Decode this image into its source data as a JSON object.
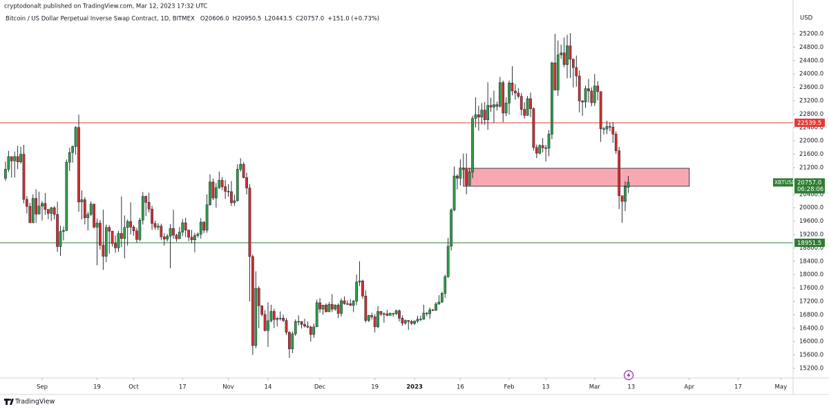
{
  "chart_data": {
    "type": "candlestick",
    "publisher": "cryptodonalt published on TradingView.com, Mar 12, 2023 17:32 UTC",
    "title": "Bitcoin / US Dollar Perpetual Inverse Swap Contract, 1D, BITMEX",
    "legend_values": [
      "O20606.0",
      "H20950.5",
      "L20443.5",
      "C20757.0",
      "+151.0 (+0.73%)"
    ],
    "y_axis_label": "USD",
    "footer": "TradingView",
    "up_color": "#2e9e48",
    "down_color": "#d32f2f",
    "x": [
      0,
      1,
      2,
      3,
      4,
      5,
      6,
      7,
      8,
      9,
      10,
      11,
      12,
      13,
      14,
      15,
      16,
      17,
      18,
      19,
      20,
      21,
      22,
      23,
      24,
      25,
      26,
      27,
      28,
      29,
      30,
      31,
      32,
      33,
      34,
      35,
      36,
      37,
      38,
      39,
      40,
      41,
      42,
      43,
      44,
      45,
      46,
      47,
      48,
      49,
      50,
      51,
      52,
      53,
      54,
      55,
      56,
      57,
      58,
      59,
      60,
      61,
      62,
      63,
      64,
      65,
      66,
      67,
      68,
      69,
      70,
      71,
      72,
      73,
      74,
      75,
      76,
      77,
      78,
      79,
      80,
      81,
      82,
      83,
      84,
      85,
      86,
      87,
      88,
      89,
      90,
      91,
      92,
      93,
      94,
      95,
      96,
      97,
      98,
      99,
      100,
      101,
      102,
      103,
      104,
      105,
      106,
      107,
      108,
      109,
      110,
      111,
      112,
      113,
      114,
      115,
      116,
      117,
      118,
      119,
      120,
      121,
      122,
      123,
      124,
      125,
      126,
      127,
      128,
      129,
      130,
      131,
      132,
      133,
      134,
      135,
      136,
      137,
      138,
      139,
      140,
      141,
      142,
      143,
      144,
      145,
      146,
      147,
      148,
      149,
      150,
      151,
      152,
      153,
      154,
      155,
      156,
      157,
      158,
      159,
      160,
      161,
      162,
      163,
      164,
      165,
      166,
      167,
      168,
      169,
      170,
      171,
      172,
      173,
      174,
      175,
      176,
      177,
      178,
      179,
      180,
      181,
      182,
      183,
      184,
      185,
      186,
      187,
      188,
      189,
      190,
      191,
      192,
      193,
      194,
      195,
      196,
      197,
      198,
      199,
      200,
      201,
      202,
      203,
      204
    ],
    "open": [
      20880,
      21150,
      21530,
      21400,
      21530,
      21370,
      21600,
      20250,
      20040,
      19550,
      20280,
      19810,
      20050,
      20130,
      19950,
      19830,
      20000,
      19800,
      18840,
      19290,
      19320,
      21360,
      21650,
      21830,
      22400,
      20170,
      20240,
      19700,
      19800,
      20110,
      19420,
      19540,
      18880,
      18550,
      19410,
      19300,
      18930,
      18800,
      19230,
      19080,
      19410,
      19590,
      19420,
      19310,
      19050,
      19630,
      20340,
      20160,
      19960,
      19530,
      19420,
      19450,
      19130,
      19060,
      19150,
      19380,
      19180,
      19070,
      19270,
      19550,
      19330,
      19120,
      19040,
      19170,
      19210,
      19570,
      19330,
      20090,
      20770,
      20290,
      20600,
      20820,
      20630,
      20490,
      20480,
      20150,
      20210,
      21150,
      21300,
      20900,
      20590,
      18540,
      15880,
      17590,
      17070,
      16810,
      16330,
      16620,
      16900,
      16660,
      16690,
      16700,
      16630,
      16280,
      15780,
      16230,
      16600,
      16600,
      16510,
      16460,
      16430,
      16210,
      16440,
      17160,
      16970,
      17090,
      16890,
      17110,
      16970,
      17090,
      16840,
      17220,
      17130,
      17130,
      17080,
      17210,
      17780,
      17810,
      17360,
      16630,
      16780,
      16740,
      16440,
      16900,
      16820,
      16830,
      16780,
      16840,
      16830,
      16920,
      16700,
      16550,
      16630,
      16600,
      16540,
      16610,
      16670,
      16670,
      16850,
      16830,
      16950,
      16940,
      17120,
      17180,
      17440,
      17940,
      18850,
      19930,
      20950,
      20880,
      21190,
      21140,
      20680,
      21070,
      22670,
      22780,
      22710,
      22920,
      22630,
      23060,
      23010,
      23080,
      23030,
      23740,
      22830,
      23130,
      23730,
      23490,
      23430,
      23330,
      22940,
      22760,
      23260,
      22960,
      21800,
      21630,
      21860,
      21790,
      21780,
      22200,
      24330,
      23520,
      24570,
      24630,
      24280,
      24840,
      24440,
      24190,
      23940,
      23190,
      23160,
      23560,
      23490,
      23140,
      23640,
      23470,
      22360,
      22350,
      22430,
      22410,
      22200,
      21700,
      20360,
      20190,
      20606
    ],
    "high": [
      21380,
      21700,
      21530,
      21680,
      21850,
      21820,
      21880,
      20350,
      20150,
      20400,
      20550,
      20480,
      20200,
      20440,
      19960,
      20030,
      20050,
      20180,
      19460,
      19440,
      21440,
      21790,
      21860,
      22440,
      22780,
      20520,
      20320,
      19880,
      20190,
      20110,
      19680,
      19630,
      19940,
      19500,
      19480,
      19310,
      19170,
      19310,
      20340,
      19770,
      19650,
      20160,
      19480,
      19400,
      19700,
      20470,
      20360,
      20450,
      20060,
      19610,
      19540,
      19520,
      19240,
      19220,
      19510,
      19940,
      19220,
      19420,
      19660,
      19700,
      19350,
      19340,
      19250,
      19260,
      19690,
      19600,
      20400,
      21000,
      20870,
      20740,
      21080,
      20920,
      20830,
      20700,
      20800,
      20390,
      21300,
      21480,
      21360,
      21050,
      20700,
      18600,
      18100,
      17650,
      17070,
      16940,
      17170,
      17100,
      16980,
      16740,
      16900,
      16800,
      16700,
      16300,
      16300,
      16660,
      16780,
      16600,
      16680,
      16600,
      16480,
      16540,
      17250,
      17300,
      17100,
      17140,
      17180,
      17420,
      17110,
      17140,
      17290,
      17350,
      17230,
      17270,
      17240,
      18000,
      18400,
      17850,
      17530,
      16800,
      16860,
      16820,
      17060,
      16910,
      16870,
      16950,
      16870,
      16860,
      16950,
      16960,
      16780,
      16660,
      16640,
      16650,
      16630,
      16770,
      16770,
      17100,
      16880,
      17020,
      16970,
      17180,
      17390,
      17490,
      18000,
      19100,
      19990,
      21230,
      21000,
      21450,
      21620,
      21620,
      21180,
      22750,
      23300,
      23050,
      23130,
      23160,
      23750,
      23290,
      23500,
      23170,
      23910,
      23800,
      23300,
      23800,
      24230,
      23700,
      23570,
      23430,
      23150,
      23340,
      23440,
      23000,
      21890,
      21900,
      22080,
      21880,
      22320,
      24370,
      25200,
      25000,
      24880,
      25090,
      25170,
      25220,
      24460,
      24550,
      24100,
      23220,
      23650,
      23850,
      23600,
      24000,
      23780,
      23480,
      22420,
      22600,
      22550,
      22560,
      22280,
      21820,
      20360,
      20790,
      20950.5
    ],
    "low": [
      20800,
      21070,
      20900,
      20900,
      21160,
      21320,
      20130,
      19830,
      19550,
      19550,
      19550,
      19800,
      19620,
      19790,
      19660,
      19600,
      19650,
      18680,
      18560,
      19020,
      19300,
      21100,
      21350,
      21580,
      19880,
      19650,
      19500,
      19320,
      19750,
      19380,
      18280,
      18750,
      18140,
      18380,
      18630,
      18840,
      18650,
      18680,
      18820,
      18490,
      18870,
      19200,
      19160,
      18960,
      19000,
      19500,
      19750,
      19860,
      19340,
      19350,
      19330,
      19030,
      18870,
      18990,
      18190,
      19070,
      18980,
      19070,
      19150,
      19120,
      19000,
      18940,
      18670,
      19110,
      19080,
      19240,
      19250,
      20060,
      20230,
      20000,
      20560,
      20530,
      20260,
      20330,
      20050,
      20060,
      20180,
      21080,
      20880,
      20400,
      17200,
      15600,
      15800,
      16400,
      16750,
      16300,
      15840,
      16570,
      16400,
      16450,
      16630,
      16580,
      16200,
      15510,
      15650,
      16170,
      16480,
      16390,
      16420,
      16400,
      16000,
      16110,
      16430,
      16860,
      16800,
      16870,
      16880,
      16880,
      16920,
      16700,
      16750,
      17100,
      17090,
      17070,
      16880,
      17090,
      17660,
      17280,
      16570,
      16580,
      16660,
      16270,
      16400,
      16760,
      16560,
      16760,
      16780,
      16740,
      16790,
      16600,
      16470,
      16500,
      16350,
      16490,
      16490,
      16560,
      16610,
      16650,
      16760,
      16680,
      16910,
      16910,
      17100,
      17150,
      17310,
      17900,
      18720,
      19900,
      20550,
      20660,
      20870,
      20400,
      20660,
      20880,
      22400,
      22300,
      22490,
      22480,
      22330,
      22860,
      22540,
      22900,
      23000,
      22560,
      22740,
      22780,
      23360,
      23230,
      23270,
      22760,
      22660,
      22750,
      22710,
      21710,
      21480,
      21600,
      21650,
      21380,
      21540,
      22050,
      23500,
      23340,
      24450,
      24200,
      23870,
      23880,
      23600,
      23620,
      22850,
      22750,
      22980,
      23150,
      23030,
      23040,
      23210,
      21970,
      22190,
      22200,
      22290,
      21940,
      21610,
      19960,
      19550,
      19900,
      20443.5
    ],
    "close": [
      21150,
      21530,
      21400,
      21530,
      21370,
      21600,
      20250,
      20040,
      19550,
      20280,
      19810,
      20050,
      20130,
      19950,
      19830,
      20000,
      19800,
      18840,
      19290,
      19320,
      21360,
      21650,
      21830,
      22400,
      20170,
      20240,
      19700,
      19800,
      20110,
      19420,
      19540,
      18880,
      18550,
      19410,
      19300,
      18930,
      18800,
      19230,
      19080,
      19410,
      19590,
      19420,
      19310,
      19050,
      19630,
      20340,
      20160,
      19960,
      19530,
      19420,
      19450,
      19130,
      19060,
      19150,
      19380,
      19180,
      19070,
      19270,
      19550,
      19330,
      19120,
      19040,
      19170,
      19210,
      19570,
      19330,
      20090,
      20770,
      20290,
      20600,
      20820,
      20630,
      20490,
      20480,
      20150,
      20210,
      21150,
      21300,
      20900,
      20590,
      18540,
      15880,
      17590,
      17070,
      16810,
      16330,
      16620,
      16900,
      16660,
      16690,
      16700,
      16630,
      16280,
      15780,
      16230,
      16600,
      16600,
      16510,
      16460,
      16430,
      16210,
      16440,
      17160,
      16970,
      17090,
      16890,
      17110,
      16970,
      17090,
      16840,
      17220,
      17130,
      17130,
      17080,
      17210,
      17780,
      17810,
      17360,
      16630,
      16780,
      16740,
      16440,
      16900,
      16820,
      16830,
      16780,
      16840,
      16830,
      16920,
      16700,
      16550,
      16630,
      16600,
      16540,
      16610,
      16670,
      16670,
      16850,
      16830,
      16950,
      16940,
      17120,
      17180,
      17440,
      17940,
      18850,
      19930,
      20950,
      20880,
      21190,
      21140,
      20680,
      21070,
      22670,
      22780,
      22710,
      22920,
      22630,
      23060,
      23010,
      23080,
      23030,
      23740,
      22830,
      23130,
      23730,
      23490,
      23430,
      23330,
      22940,
      22760,
      23260,
      22960,
      21800,
      21630,
      21860,
      21790,
      21780,
      22200,
      24330,
      23520,
      24570,
      24630,
      24280,
      24840,
      24440,
      24190,
      23940,
      23190,
      23160,
      23560,
      23490,
      23140,
      23640,
      23470,
      22360,
      22350,
      22430,
      22410,
      22200,
      21700,
      20360,
      20190,
      20630,
      20757
    ],
    "xlim": [
      -1.8,
      258
    ],
    "xticks": [
      {
        "value": 12,
        "label": "Sep"
      },
      {
        "value": 30,
        "label": "19"
      },
      {
        "value": 42,
        "label": "Oct"
      },
      {
        "value": 58,
        "label": "17"
      },
      {
        "value": 73,
        "label": "Nov"
      },
      {
        "value": 86,
        "label": "14"
      },
      {
        "value": 103,
        "label": "Dec"
      },
      {
        "value": 121,
        "label": "19"
      },
      {
        "value": 134,
        "label": "2023"
      },
      {
        "value": 149,
        "label": "16"
      },
      {
        "value": 165,
        "label": "Feb"
      },
      {
        "value": 177,
        "label": "13"
      },
      {
        "value": 193,
        "label": "Mar"
      },
      {
        "value": 205,
        "label": "13"
      },
      {
        "value": 224,
        "label": "Apr"
      },
      {
        "value": 240,
        "label": "17"
      },
      {
        "value": 254,
        "label": "May"
      }
    ],
    "ylim": [
      14911,
      26210
    ],
    "yticks": [
      {
        "value": 15200,
        "label": "15200.0"
      },
      {
        "value": 15600,
        "label": "15600.0"
      },
      {
        "value": 16000,
        "label": "16000.0"
      },
      {
        "value": 16400,
        "label": "16400.0"
      },
      {
        "value": 16800,
        "label": "16800.0"
      },
      {
        "value": 17200,
        "label": "17200.0"
      },
      {
        "value": 17600,
        "label": "17600.0"
      },
      {
        "value": 18000,
        "label": "18000.0"
      },
      {
        "value": 18400,
        "label": "18400.0"
      },
      {
        "value": 18800,
        "label": "18800.0"
      },
      {
        "value": 19200,
        "label": "19200.0"
      },
      {
        "value": 19600,
        "label": "19600.0"
      },
      {
        "value": 20000,
        "label": "20000.0"
      },
      {
        "value": 20400,
        "label": "20400.0"
      },
      {
        "value": 20800,
        "label": "20800.0"
      },
      {
        "value": 21200,
        "label": "21200.0"
      },
      {
        "value": 21600,
        "label": "21600.0"
      },
      {
        "value": 22000,
        "label": "22000.0"
      },
      {
        "value": 22400,
        "label": "22400.0"
      },
      {
        "value": 22800,
        "label": "22800.0"
      },
      {
        "value": 23200,
        "label": "23200.0"
      },
      {
        "value": 23600,
        "label": "23600.0"
      },
      {
        "value": 24000,
        "label": "24000.0"
      },
      {
        "value": 24400,
        "label": "24400.0"
      },
      {
        "value": 24800,
        "label": "24800.0"
      },
      {
        "value": 25200,
        "label": "25200.0"
      }
    ],
    "grid": false,
    "levels": [
      {
        "value": 22539.5,
        "label": "22539.5",
        "color": "#e53935"
      },
      {
        "value": 18951.5,
        "label": "18951.5",
        "color": "#2e7d32"
      }
    ],
    "zone": {
      "start": 150,
      "end": 224,
      "bottom": 20643,
      "top": 21179,
      "color": "#f7a8b2"
    },
    "last_price": {
      "value": 20757,
      "symbol": "XBTUSD",
      "label": "20757.0",
      "countdown": "06:28:06",
      "color": "#2e7d32"
    }
  }
}
